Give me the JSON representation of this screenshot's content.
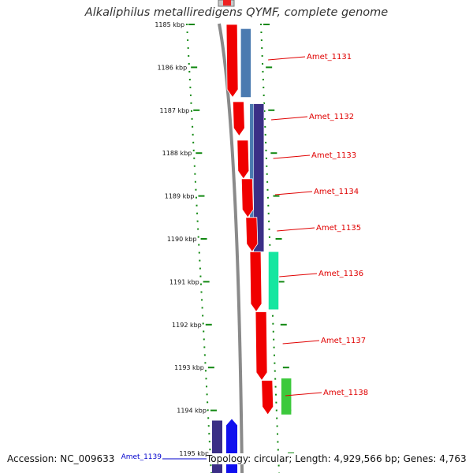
{
  "title": "Alkaliphilus metalliredigens QYMF, complete genome",
  "footer": {
    "accession": "Accession: NC_009633",
    "info": "Topology: circular; Length: 4,929,566 bp; Genes: 4,763"
  },
  "kbp_ticks": [
    {
      "label": "1185 kbp",
      "kbp": 1185
    },
    {
      "label": "1186 kbp",
      "kbp": 1186
    },
    {
      "label": "1187 kbp",
      "kbp": 1187
    },
    {
      "label": "1188 kbp",
      "kbp": 1188
    },
    {
      "label": "1189 kbp",
      "kbp": 1189
    },
    {
      "label": "1190 kbp",
      "kbp": 1190
    },
    {
      "label": "1191 kbp",
      "kbp": 1191
    },
    {
      "label": "1192 kbp",
      "kbp": 1192
    },
    {
      "label": "1193 kbp",
      "kbp": 1193
    },
    {
      "label": "1194 kbp",
      "kbp": 1194
    },
    {
      "label": "1195 kbp",
      "kbp": 1195
    }
  ],
  "genes": [
    {
      "name": "Amet_1131",
      "start_kbp": 1185.0,
      "end_kbp": 1186.7,
      "strand": "+"
    },
    {
      "name": "Amet_1132",
      "start_kbp": 1186.8,
      "end_kbp": 1187.6,
      "strand": "+"
    },
    {
      "name": "Amet_1133",
      "start_kbp": 1187.7,
      "end_kbp": 1188.6,
      "strand": "+"
    },
    {
      "name": "Amet_1134",
      "start_kbp": 1188.6,
      "end_kbp": 1189.5,
      "strand": "+"
    },
    {
      "name": "Amet_1135",
      "start_kbp": 1189.5,
      "end_kbp": 1190.3,
      "strand": "+"
    },
    {
      "name": "Amet_1136",
      "start_kbp": 1190.3,
      "end_kbp": 1191.7,
      "strand": "+"
    },
    {
      "name": "Amet_1137",
      "start_kbp": 1191.7,
      "end_kbp": 1193.3,
      "strand": "+"
    },
    {
      "name": "Amet_1138",
      "start_kbp": 1193.3,
      "end_kbp": 1194.1,
      "strand": "+"
    }
  ],
  "blue_gene": {
    "name": "Amet_1139",
    "start_kbp": 1194.2,
    "end_kbp": 1195.5,
    "strand": "-"
  },
  "colors": {
    "cds": "#f00000",
    "tick_dots": "#118811",
    "backbone": "#8a8a8a",
    "label_red": "#e00000",
    "label_blue": "#0000cc",
    "steel": "#4a7ab0",
    "purple": "#3b2f86",
    "teal": "#15e6a0",
    "green": "#3cc93c",
    "blue": "#1010ee"
  }
}
